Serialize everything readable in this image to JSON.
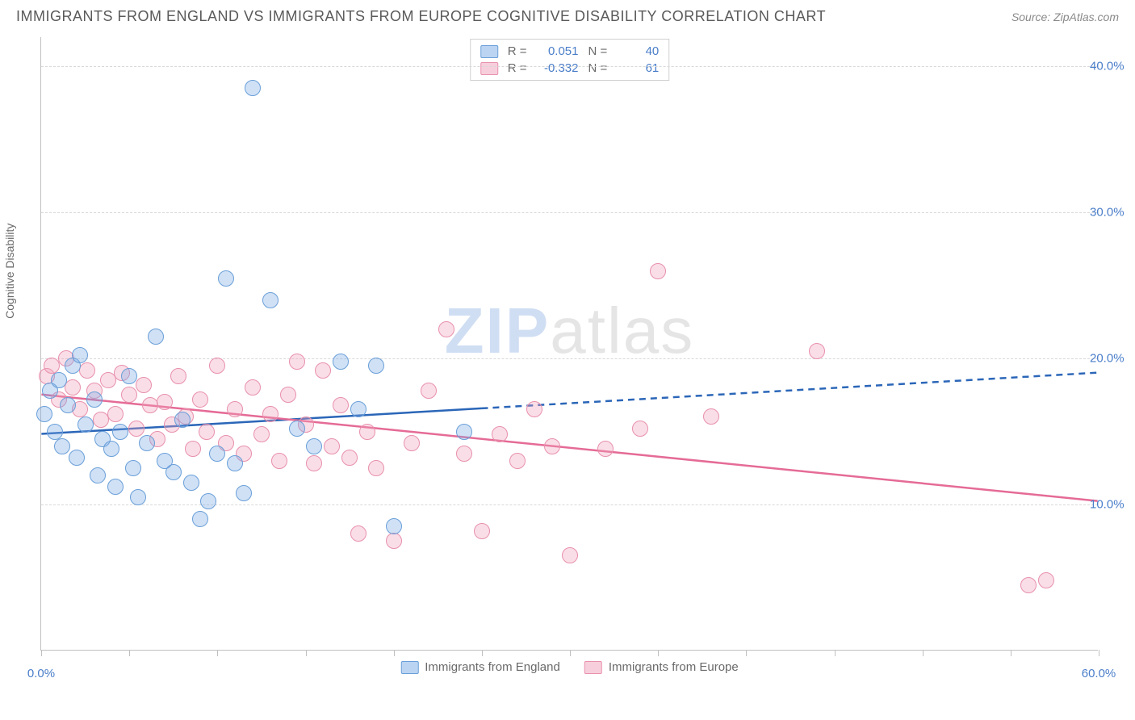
{
  "header": {
    "title": "IMMIGRANTS FROM ENGLAND VS IMMIGRANTS FROM EUROPE COGNITIVE DISABILITY CORRELATION CHART",
    "source": "Source: ZipAtlas.com"
  },
  "watermark": {
    "part1": "ZIP",
    "part2": "atlas"
  },
  "chart": {
    "type": "scatter",
    "xlim": [
      0,
      60
    ],
    "ylim": [
      0,
      42
    ],
    "yticks": [
      10,
      20,
      30,
      40
    ],
    "ytick_labels": [
      "10.0%",
      "20.0%",
      "30.0%",
      "40.0%"
    ],
    "xticks": [
      0,
      5,
      10,
      15,
      20,
      25,
      30,
      35,
      40,
      45,
      50,
      55,
      60
    ],
    "xtick_labels_shown": {
      "0": "0.0%",
      "60": "60.0%"
    },
    "y_axis_label": "Cognitive Disability",
    "grid_color": "#d8d8d8",
    "background_color": "#ffffff",
    "axis_color": "#c0c0c0",
    "label_color": "#4a7ec9",
    "axis_text_color": "#6a6a6a",
    "point_radius": 10,
    "series": {
      "england": {
        "label": "Immigrants from England",
        "R": "0.051",
        "N": "40",
        "color_fill": "rgba(120,170,230,0.35)",
        "color_stroke": "#6a9fd8",
        "trend_color": "#2b66b8",
        "trend_width": 2.5,
        "trend_solid_xmax": 25,
        "trend_y_at_x0": 14.8,
        "trend_y_at_x60": 19.0,
        "points": [
          [
            0.2,
            16.2
          ],
          [
            0.5,
            17.8
          ],
          [
            0.8,
            15.0
          ],
          [
            1.0,
            18.5
          ],
          [
            1.2,
            14.0
          ],
          [
            1.5,
            16.8
          ],
          [
            1.8,
            19.5
          ],
          [
            2.0,
            13.2
          ],
          [
            2.2,
            20.2
          ],
          [
            2.5,
            15.5
          ],
          [
            3.0,
            17.2
          ],
          [
            3.2,
            12.0
          ],
          [
            3.5,
            14.5
          ],
          [
            4.0,
            13.8
          ],
          [
            4.2,
            11.2
          ],
          [
            4.5,
            15.0
          ],
          [
            5.0,
            18.8
          ],
          [
            5.2,
            12.5
          ],
          [
            5.5,
            10.5
          ],
          [
            6.0,
            14.2
          ],
          [
            6.5,
            21.5
          ],
          [
            7.0,
            13.0
          ],
          [
            7.5,
            12.2
          ],
          [
            8.0,
            15.8
          ],
          [
            8.5,
            11.5
          ],
          [
            9.0,
            9.0
          ],
          [
            9.5,
            10.2
          ],
          [
            10.0,
            13.5
          ],
          [
            10.5,
            25.5
          ],
          [
            11.0,
            12.8
          ],
          [
            11.5,
            10.8
          ],
          [
            12.0,
            38.5
          ],
          [
            13.0,
            24.0
          ],
          [
            14.5,
            15.2
          ],
          [
            15.5,
            14.0
          ],
          [
            17.0,
            19.8
          ],
          [
            18.0,
            16.5
          ],
          [
            19.0,
            19.5
          ],
          [
            20.0,
            8.5
          ],
          [
            24.0,
            15.0
          ]
        ]
      },
      "europe": {
        "label": "Immigrants from Europe",
        "R": "-0.332",
        "N": "61",
        "color_fill": "rgba(240,160,185,0.35)",
        "color_stroke": "#e890ac",
        "trend_color": "#e56b96",
        "trend_width": 2.5,
        "trend_y_at_x0": 17.5,
        "trend_y_at_x60": 10.2,
        "points": [
          [
            0.3,
            18.8
          ],
          [
            0.6,
            19.5
          ],
          [
            1.0,
            17.2
          ],
          [
            1.4,
            20.0
          ],
          [
            1.8,
            18.0
          ],
          [
            2.2,
            16.5
          ],
          [
            2.6,
            19.2
          ],
          [
            3.0,
            17.8
          ],
          [
            3.4,
            15.8
          ],
          [
            3.8,
            18.5
          ],
          [
            4.2,
            16.2
          ],
          [
            4.6,
            19.0
          ],
          [
            5.0,
            17.5
          ],
          [
            5.4,
            15.2
          ],
          [
            5.8,
            18.2
          ],
          [
            6.2,
            16.8
          ],
          [
            6.6,
            14.5
          ],
          [
            7.0,
            17.0
          ],
          [
            7.4,
            15.5
          ],
          [
            7.8,
            18.8
          ],
          [
            8.2,
            16.0
          ],
          [
            8.6,
            13.8
          ],
          [
            9.0,
            17.2
          ],
          [
            9.4,
            15.0
          ],
          [
            10.0,
            19.5
          ],
          [
            10.5,
            14.2
          ],
          [
            11.0,
            16.5
          ],
          [
            11.5,
            13.5
          ],
          [
            12.0,
            18.0
          ],
          [
            12.5,
            14.8
          ],
          [
            13.0,
            16.2
          ],
          [
            13.5,
            13.0
          ],
          [
            14.0,
            17.5
          ],
          [
            14.5,
            19.8
          ],
          [
            15.0,
            15.5
          ],
          [
            15.5,
            12.8
          ],
          [
            16.0,
            19.2
          ],
          [
            16.5,
            14.0
          ],
          [
            17.0,
            16.8
          ],
          [
            17.5,
            13.2
          ],
          [
            18.0,
            8.0
          ],
          [
            18.5,
            15.0
          ],
          [
            19.0,
            12.5
          ],
          [
            20.0,
            7.5
          ],
          [
            21.0,
            14.2
          ],
          [
            22.0,
            17.8
          ],
          [
            23.0,
            22.0
          ],
          [
            24.0,
            13.5
          ],
          [
            25.0,
            8.2
          ],
          [
            26.0,
            14.8
          ],
          [
            27.0,
            13.0
          ],
          [
            28.0,
            16.5
          ],
          [
            29.0,
            14.0
          ],
          [
            30.0,
            6.5
          ],
          [
            32.0,
            13.8
          ],
          [
            34.0,
            15.2
          ],
          [
            35.0,
            26.0
          ],
          [
            38.0,
            16.0
          ],
          [
            44.0,
            20.5
          ],
          [
            56.0,
            4.5
          ],
          [
            57.0,
            4.8
          ]
        ]
      }
    },
    "legend_top": {
      "r_label": "R =",
      "n_label": "N ="
    }
  }
}
